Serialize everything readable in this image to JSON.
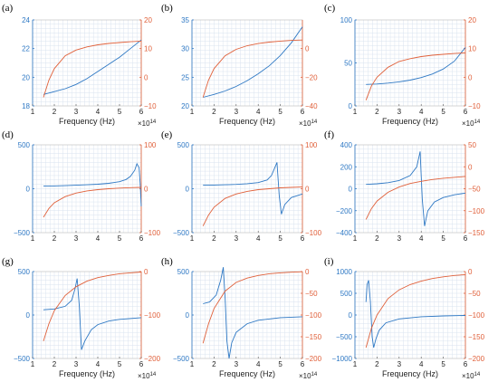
{
  "chart_data": [
    {
      "type": "line",
      "label": "(a)",
      "xlabel": "Frequency (Hz)",
      "xmultiplier": "×10^14",
      "xlim": [
        1,
        6
      ],
      "xticks": [
        1,
        2,
        3,
        4,
        5,
        6
      ],
      "ylim_left": [
        18,
        24
      ],
      "yticks_left": [
        18,
        20,
        22,
        24
      ],
      "ylim_right": [
        -10,
        20
      ],
      "yticks_right": [
        -10,
        0,
        10,
        20
      ],
      "series": [
        {
          "axis": "left",
          "color": "#2e78c4",
          "x": [
            1.5,
            2,
            2.5,
            3,
            3.5,
            4,
            4.5,
            5,
            5.5,
            6
          ],
          "y": [
            18.8,
            19.0,
            19.2,
            19.5,
            19.9,
            20.4,
            20.9,
            21.4,
            22.0,
            22.6
          ]
        },
        {
          "axis": "right",
          "color": "#e0603a",
          "x": [
            1.5,
            1.75,
            2,
            2.5,
            3,
            3.5,
            4,
            4.5,
            5,
            5.5,
            6
          ],
          "y": [
            -7,
            -1,
            3,
            7.5,
            9.5,
            10.6,
            11.3,
            11.8,
            12.1,
            12.4,
            12.6
          ]
        }
      ]
    },
    {
      "type": "line",
      "label": "(b)",
      "xlabel": "Frequency (Hz)",
      "xmultiplier": "×10^14",
      "xlim": [
        1,
        6
      ],
      "xticks": [
        1,
        2,
        3,
        4,
        5,
        6
      ],
      "ylim_left": [
        20,
        35
      ],
      "yticks_left": [
        20,
        25,
        30,
        35
      ],
      "ylim_right": [
        -40,
        20
      ],
      "yticks_right": [
        -40,
        -20,
        0
      ],
      "series": [
        {
          "axis": "left",
          "color": "#2e78c4",
          "x": [
            1.5,
            2,
            2.5,
            3,
            3.5,
            4,
            4.5,
            5,
            5.5,
            6
          ],
          "y": [
            21.5,
            22.0,
            22.6,
            23.4,
            24.4,
            25.6,
            27.0,
            28.8,
            31.0,
            33.8
          ]
        },
        {
          "axis": "right",
          "color": "#e0603a",
          "x": [
            1.5,
            1.75,
            2,
            2.5,
            3,
            3.5,
            4,
            4.5,
            5,
            5.5,
            6
          ],
          "y": [
            -34,
            -22,
            -14,
            -5,
            -0.5,
            2,
            3.5,
            4.5,
            5.2,
            5.7,
            6
          ]
        }
      ]
    },
    {
      "type": "line",
      "label": "(c)",
      "xlabel": "Frequency (Hz)",
      "xmultiplier": "×10^14",
      "xlim": [
        1,
        6
      ],
      "xticks": [
        1,
        2,
        3,
        4,
        5,
        6
      ],
      "ylim_left": [
        0,
        100
      ],
      "yticks_left": [
        0,
        50,
        100
      ],
      "ylim_right": [
        -10,
        20
      ],
      "yticks_right": [
        -10,
        0,
        10,
        20
      ],
      "series": [
        {
          "axis": "left",
          "color": "#2e78c4",
          "x": [
            1.5,
            2,
            2.5,
            3,
            3.5,
            4,
            4.5,
            5,
            5.5,
            6
          ],
          "y": [
            25,
            25.5,
            26.5,
            28,
            30,
            33,
            37,
            43,
            52,
            68
          ]
        },
        {
          "axis": "right",
          "color": "#e0603a",
          "x": [
            1.5,
            1.75,
            2,
            2.5,
            3,
            3.5,
            4,
            4.5,
            5,
            5.5,
            6
          ],
          "y": [
            -8,
            -3,
            0,
            3.5,
            5.5,
            6.5,
            7.2,
            7.7,
            8,
            8.3,
            8.5
          ]
        }
      ]
    },
    {
      "type": "line",
      "label": "(d)",
      "xlabel": "",
      "xmultiplier": "",
      "xlim": [
        1,
        6
      ],
      "xticks": [
        1,
        2,
        3,
        4,
        5,
        6
      ],
      "ylim_left": [
        -500,
        500
      ],
      "yticks_left": [
        -500,
        0,
        500
      ],
      "ylim_right": [
        -100,
        100
      ],
      "yticks_right": [
        -100,
        0,
        100
      ],
      "series": [
        {
          "axis": "left",
          "color": "#2e78c4",
          "x": [
            1.5,
            2,
            2.5,
            3,
            3.5,
            4,
            4.5,
            5,
            5.3,
            5.5,
            5.7,
            5.8,
            5.9,
            5.95,
            6
          ],
          "y": [
            30,
            32,
            35,
            40,
            45,
            52,
            62,
            80,
            105,
            140,
            210,
            285,
            240,
            60,
            -200
          ]
        },
        {
          "axis": "right",
          "color": "#e0603a",
          "x": [
            1.5,
            1.75,
            2,
            2.5,
            3,
            3.5,
            4,
            4.5,
            5,
            5.5,
            6
          ],
          "y": [
            -65,
            -45,
            -32,
            -18,
            -10,
            -5,
            -2,
            0,
            1.5,
            2.5,
            3
          ]
        }
      ]
    },
    {
      "type": "line",
      "label": "(e)",
      "xlabel": "",
      "xmultiplier": "",
      "xlim": [
        1,
        6
      ],
      "xticks": [
        1,
        2,
        3,
        4,
        5,
        6
      ],
      "ylim_left": [
        -500,
        500
      ],
      "yticks_left": [
        -500,
        0,
        500
      ],
      "ylim_right": [
        -100,
        100
      ],
      "yticks_right": [
        -100,
        0,
        100
      ],
      "series": [
        {
          "axis": "left",
          "color": "#2e78c4",
          "x": [
            1.5,
            2,
            2.5,
            3,
            3.5,
            4,
            4.4,
            4.6,
            4.75,
            4.85,
            4.95,
            5.05,
            5.2,
            5.5,
            6
          ],
          "y": [
            40,
            42,
            45,
            50,
            58,
            70,
            100,
            150,
            240,
            300,
            -80,
            -290,
            -180,
            -100,
            -60
          ]
        },
        {
          "axis": "right",
          "color": "#e0603a",
          "x": [
            1.5,
            1.75,
            2,
            2.5,
            3,
            3.5,
            4,
            4.5,
            5,
            5.5,
            6
          ],
          "y": [
            -85,
            -60,
            -42,
            -22,
            -12,
            -6,
            -2,
            0,
            2,
            3,
            4
          ]
        }
      ]
    },
    {
      "type": "line",
      "label": "(f)",
      "xlabel": "",
      "xmultiplier": "",
      "xlim": [
        1,
        6
      ],
      "xticks": [
        1,
        2,
        3,
        4,
        5,
        6
      ],
      "ylim_left": [
        -400,
        400
      ],
      "yticks_left": [
        -400,
        -200,
        0,
        200,
        400
      ],
      "ylim_right": [
        -150,
        50
      ],
      "yticks_right": [
        -150,
        -100,
        -50,
        0,
        50
      ],
      "series": [
        {
          "axis": "left",
          "color": "#2e78c4",
          "x": [
            1.5,
            2,
            2.5,
            3,
            3.5,
            3.8,
            3.95,
            4.05,
            4.15,
            4.3,
            4.6,
            5,
            5.5,
            6
          ],
          "y": [
            40,
            45,
            55,
            75,
            120,
            200,
            340,
            -100,
            -340,
            -200,
            -120,
            -80,
            -55,
            -40
          ]
        },
        {
          "axis": "right",
          "color": "#e0603a",
          "x": [
            1.5,
            1.75,
            2,
            2.5,
            3,
            3.5,
            4,
            4.5,
            5,
            5.5,
            6
          ],
          "y": [
            -120,
            -95,
            -78,
            -58,
            -46,
            -38,
            -33,
            -29,
            -26,
            -24,
            -22
          ]
        }
      ]
    },
    {
      "type": "line",
      "label": "(g)",
      "xlabel": "Frequency (Hz)",
      "xmultiplier": "×10^14",
      "xlim": [
        1,
        6
      ],
      "xticks": [
        1,
        2,
        3,
        4,
        5,
        6
      ],
      "ylim_left": [
        -500,
        500
      ],
      "yticks_left": [
        -500,
        0,
        500
      ],
      "ylim_right": [
        -200,
        0
      ],
      "yticks_right": [
        -200,
        -100,
        0
      ],
      "series": [
        {
          "axis": "left",
          "color": "#2e78c4",
          "x": [
            1.5,
            2,
            2.5,
            2.8,
            2.95,
            3.05,
            3.15,
            3.25,
            3.4,
            3.7,
            4,
            4.5,
            5,
            6
          ],
          "y": [
            60,
            70,
            100,
            170,
            300,
            420,
            100,
            -400,
            -300,
            -170,
            -110,
            -70,
            -50,
            -30
          ]
        },
        {
          "axis": "right",
          "color": "#e0603a",
          "x": [
            1.5,
            1.75,
            2,
            2.5,
            3,
            3.5,
            4,
            4.5,
            5,
            5.5,
            6
          ],
          "y": [
            -160,
            -120,
            -90,
            -55,
            -35,
            -22,
            -14,
            -9,
            -5,
            -3,
            -1
          ]
        }
      ]
    },
    {
      "type": "line",
      "label": "(h)",
      "xlabel": "Frequency (Hz)",
      "xmultiplier": "×10^14",
      "xlim": [
        1,
        6
      ],
      "xticks": [
        1,
        2,
        3,
        4,
        5,
        6
      ],
      "ylim_left": [
        -500,
        500
      ],
      "yticks_left": [
        -500,
        0,
        500
      ],
      "ylim_right": [
        -200,
        0
      ],
      "yticks_right": [
        -200,
        -150,
        -100,
        -50,
        0
      ],
      "series": [
        {
          "axis": "left",
          "color": "#2e78c4",
          "x": [
            1.5,
            1.8,
            2.1,
            2.3,
            2.42,
            2.5,
            2.58,
            2.68,
            2.8,
            3,
            3.5,
            4,
            5,
            6
          ],
          "y": [
            130,
            150,
            230,
            400,
            550,
            200,
            -300,
            -500,
            -320,
            -200,
            -100,
            -60,
            -30,
            -20
          ]
        },
        {
          "axis": "right",
          "color": "#e0603a",
          "x": [
            1.5,
            1.75,
            2,
            2.5,
            3,
            3.5,
            4,
            4.5,
            5,
            5.5,
            6
          ],
          "y": [
            -165,
            -120,
            -85,
            -45,
            -25,
            -15,
            -9,
            -5,
            -3,
            -1.5,
            -0.5
          ]
        }
      ]
    },
    {
      "type": "line",
      "label": "(i)",
      "xlabel": "Frequency (Hz)",
      "xmultiplier": "×10^14",
      "xlim": [
        1,
        6
      ],
      "xticks": [
        1,
        2,
        3,
        4,
        5,
        6
      ],
      "ylim_left": [
        -1000,
        1000
      ],
      "yticks_left": [
        -1000,
        -500,
        0,
        500,
        1000
      ],
      "ylim_right": [
        -200,
        0
      ],
      "yticks_right": [
        -200,
        -150,
        -100,
        -50,
        0
      ],
      "series": [
        {
          "axis": "left",
          "color": "#2e78c4",
          "x": [
            1.5,
            1.55,
            1.62,
            1.7,
            1.78,
            1.85,
            1.95,
            2.1,
            2.4,
            3,
            4,
            5,
            6
          ],
          "y": [
            300,
            700,
            800,
            300,
            -500,
            -750,
            -550,
            -350,
            -180,
            -90,
            -40,
            -20,
            -10
          ]
        },
        {
          "axis": "right",
          "color": "#e0603a",
          "x": [
            1.5,
            1.75,
            2,
            2.5,
            3,
            3.5,
            4,
            4.5,
            5,
            5.5,
            6
          ],
          "y": [
            -175,
            -130,
            -100,
            -62,
            -42,
            -30,
            -22,
            -16,
            -12,
            -9,
            -7
          ]
        }
      ]
    }
  ]
}
